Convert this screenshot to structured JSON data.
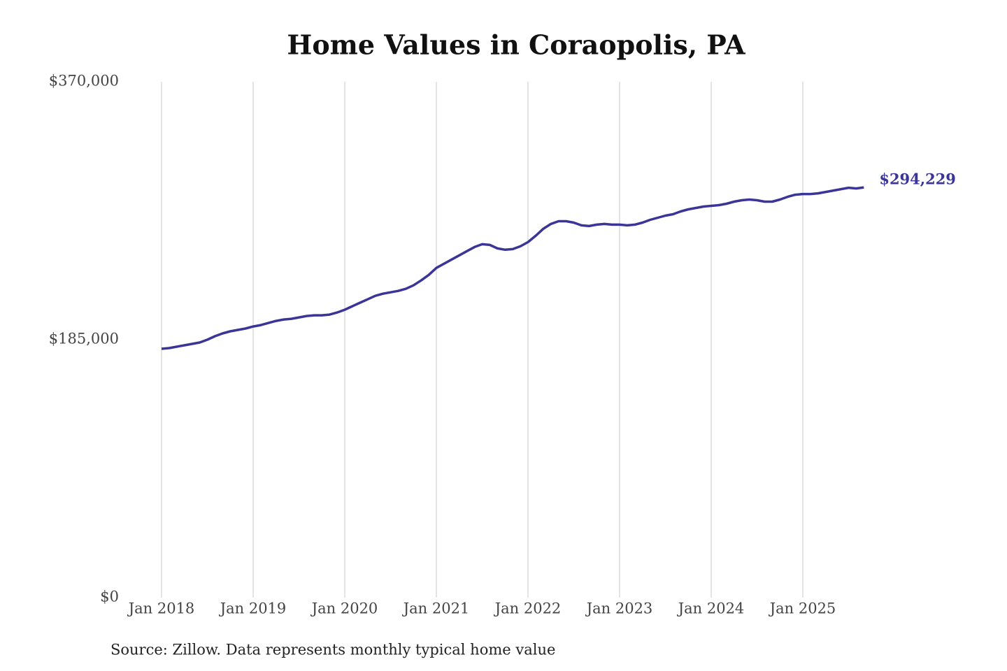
{
  "chart_data": {
    "type": "line",
    "title": "Home Values in Coraopolis, PA",
    "source": "Source: Zillow. Data represents monthly typical home value",
    "x": [
      "2018-01",
      "2018-02",
      "2018-03",
      "2018-04",
      "2018-05",
      "2018-06",
      "2018-07",
      "2018-08",
      "2018-09",
      "2018-10",
      "2018-11",
      "2018-12",
      "2019-01",
      "2019-02",
      "2019-03",
      "2019-04",
      "2019-05",
      "2019-06",
      "2019-07",
      "2019-08",
      "2019-09",
      "2019-10",
      "2019-11",
      "2019-12",
      "2020-01",
      "2020-02",
      "2020-03",
      "2020-04",
      "2020-05",
      "2020-06",
      "2020-07",
      "2020-08",
      "2020-09",
      "2020-10",
      "2020-11",
      "2020-12",
      "2021-01",
      "2021-02",
      "2021-03",
      "2021-04",
      "2021-05",
      "2021-06",
      "2021-07",
      "2021-08",
      "2021-09",
      "2021-10",
      "2021-11",
      "2021-12",
      "2022-01",
      "2022-02",
      "2022-03",
      "2022-04",
      "2022-05",
      "2022-06",
      "2022-07",
      "2022-08",
      "2022-09",
      "2022-10",
      "2022-11",
      "2022-12",
      "2023-01",
      "2023-02",
      "2023-03",
      "2023-04",
      "2023-05",
      "2023-06",
      "2023-07",
      "2023-08",
      "2023-09",
      "2023-10",
      "2023-11",
      "2023-12",
      "2024-01",
      "2024-02",
      "2024-03",
      "2024-04",
      "2024-05",
      "2024-06",
      "2024-07",
      "2024-08",
      "2024-09",
      "2024-10",
      "2024-11",
      "2024-12",
      "2025-01",
      "2025-02",
      "2025-03",
      "2025-04",
      "2025-05",
      "2025-06",
      "2025-07",
      "2025-08",
      "2025-09"
    ],
    "series": [
      {
        "name": "Home value",
        "color": "#3a3596",
        "values": [
          178500,
          179000,
          180000,
          181000,
          182000,
          183000,
          185000,
          187500,
          189500,
          191000,
          192000,
          193000,
          194500,
          195500,
          197000,
          198500,
          199500,
          200000,
          201000,
          202000,
          202500,
          202500,
          203000,
          204500,
          206500,
          209000,
          211500,
          214000,
          216500,
          218000,
          219000,
          220000,
          221500,
          224000,
          227500,
          231500,
          236500,
          239500,
          242500,
          245500,
          248500,
          251500,
          253500,
          253000,
          250500,
          249500,
          250000,
          252000,
          255000,
          259500,
          264500,
          268000,
          270000,
          270000,
          269000,
          267000,
          266500,
          267500,
          268000,
          267500,
          267500,
          267000,
          267500,
          269000,
          271000,
          272500,
          274000,
          275000,
          277000,
          278500,
          279500,
          280500,
          281000,
          281500,
          282500,
          284000,
          285000,
          285500,
          285000,
          284000,
          284000,
          285500,
          287500,
          289000,
          289500,
          289500,
          290000,
          291000,
          292000,
          293000,
          294000,
          293500,
          294229
        ],
        "value_labels": [
          null,
          null,
          null,
          null,
          null,
          null,
          null,
          null,
          null,
          null,
          null,
          null,
          null,
          null,
          null,
          null,
          null,
          null,
          null,
          null,
          null,
          null,
          null,
          null,
          null,
          null,
          null,
          null,
          null,
          null,
          null,
          null,
          null,
          null,
          null,
          null,
          null,
          null,
          null,
          null,
          null,
          null,
          null,
          null,
          null,
          null,
          null,
          null,
          null,
          null,
          null,
          null,
          null,
          null,
          null,
          null,
          null,
          null,
          null,
          null,
          null,
          null,
          null,
          null,
          null,
          null,
          null,
          null,
          null,
          null,
          null,
          null,
          null,
          null,
          null,
          null,
          null,
          null,
          null,
          null,
          null,
          null,
          null,
          null,
          null,
          null,
          null,
          null,
          null,
          null,
          null,
          null,
          "$294,229"
        ]
      }
    ],
    "xticks": [
      {
        "value": "2018-01",
        "label": "Jan 2018"
      },
      {
        "value": "2019-01",
        "label": "Jan 2019"
      },
      {
        "value": "2020-01",
        "label": "Jan 2020"
      },
      {
        "value": "2021-01",
        "label": "Jan 2021"
      },
      {
        "value": "2022-01",
        "label": "Jan 2022"
      },
      {
        "value": "2023-01",
        "label": "Jan 2023"
      },
      {
        "value": "2024-01",
        "label": "Jan 2024"
      },
      {
        "value": "2025-01",
        "label": "Jan 2025"
      }
    ],
    "ylim": [
      0,
      370000
    ],
    "yticks": [
      {
        "value": 0,
        "label": "$0"
      },
      {
        "value": 185000,
        "label": "$185,000"
      },
      {
        "value": 370000,
        "label": "$370,000"
      }
    ],
    "grid": true
  }
}
